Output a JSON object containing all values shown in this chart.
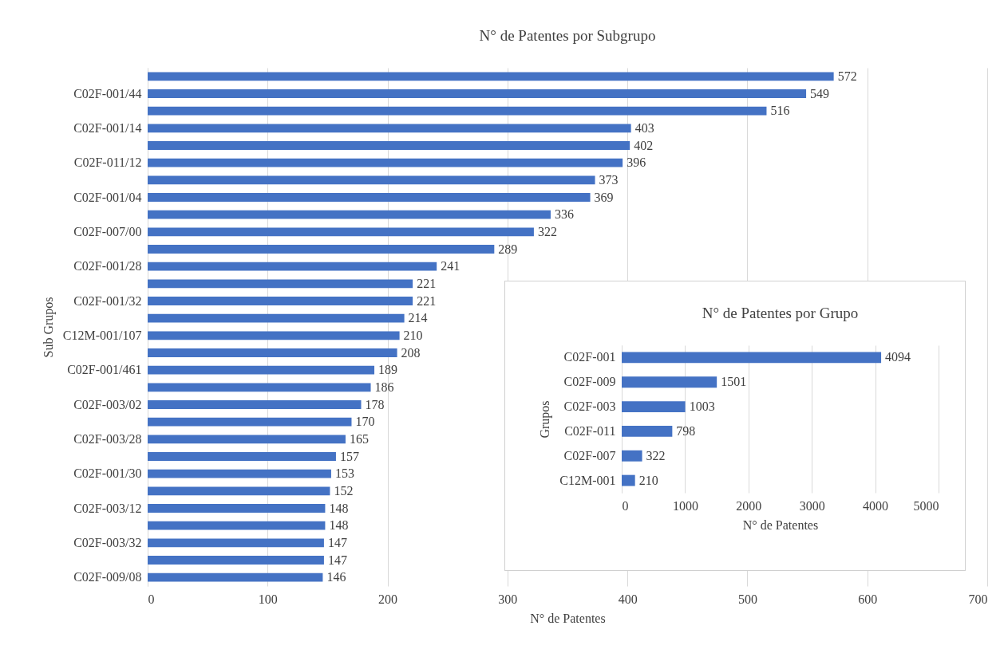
{
  "chart_data": [
    {
      "type": "bar",
      "orientation": "horizontal",
      "title": "N° de Patentes por Subgrupo",
      "xlabel": "N° de Patentes",
      "ylabel": "Sub Grupos",
      "categories": [
        null,
        "C02F-001/44",
        null,
        "C02F-001/14",
        null,
        "C02F-011/12",
        null,
        "C02F-001/04",
        null,
        "C02F-007/00",
        null,
        "C02F-001/28",
        null,
        "C02F-001/32",
        null,
        "C12M-001/107",
        null,
        "C02F-001/461",
        null,
        "C02F-003/02",
        null,
        "C02F-003/28",
        null,
        "C02F-001/30",
        null,
        "C02F-003/12",
        null,
        "C02F-003/32",
        null,
        "C02F-009/08"
      ],
      "values": [
        572,
        549,
        516,
        403,
        402,
        396,
        373,
        369,
        336,
        322,
        289,
        241,
        221,
        221,
        214,
        210,
        208,
        189,
        186,
        178,
        170,
        165,
        157,
        153,
        152,
        148,
        148,
        147,
        147,
        146
      ],
      "color": "#4472c4",
      "xlim": [
        0,
        700
      ],
      "xticks": [
        0,
        100,
        200,
        300,
        400,
        500,
        600,
        700
      ],
      "grid": "x",
      "data_labels": true
    },
    {
      "type": "bar",
      "orientation": "horizontal",
      "title": "N° de Patentes por Grupo",
      "xlabel": "N° de Patentes",
      "ylabel": "Grupos",
      "categories": [
        "C02F-001",
        "C02F-009",
        "C02F-003",
        "C02F-011",
        "C02F-007",
        "C12M-001"
      ],
      "values": [
        4094,
        1501,
        1003,
        798,
        322,
        210
      ],
      "color": "#4472c4",
      "xlim": [
        0,
        5000
      ],
      "xticks": [
        0,
        1000,
        2000,
        3000,
        4000,
        5000
      ],
      "grid": "x",
      "data_labels": true
    }
  ]
}
